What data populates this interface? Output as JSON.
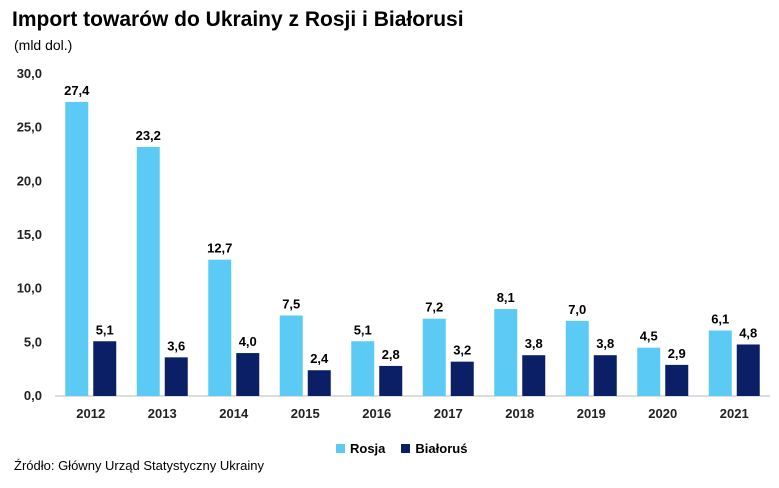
{
  "chart_data": {
    "type": "bar",
    "title": "Import towarów do Ukrainy z Rosji i Białorusi",
    "subtitle": "(mld dol.)",
    "categories": [
      "2012",
      "2013",
      "2014",
      "2015",
      "2016",
      "2017",
      "2018",
      "2019",
      "2020",
      "2021"
    ],
    "series": [
      {
        "name": "Rosja",
        "color": "#5bcbf5",
        "values": [
          27.4,
          23.2,
          12.7,
          7.5,
          5.1,
          7.2,
          8.1,
          7.0,
          4.5,
          6.1
        ],
        "labels": [
          "27,4",
          "23,2",
          "12,7",
          "7,5",
          "5,1",
          "7,2",
          "8,1",
          "7,0",
          "4,5",
          "6,1"
        ]
      },
      {
        "name": "Białoruś",
        "color": "#0b1f66",
        "values": [
          5.1,
          3.6,
          4.0,
          2.4,
          2.8,
          3.2,
          3.8,
          3.8,
          2.9,
          4.8
        ],
        "labels": [
          "5,1",
          "3,6",
          "4,0",
          "2,4",
          "2,8",
          "3,2",
          "3,8",
          "3,8",
          "2,9",
          "4,8"
        ]
      }
    ],
    "ylim": [
      0,
      30
    ],
    "yticks": [
      0,
      5,
      10,
      15,
      20,
      25,
      30
    ],
    "ytick_labels": [
      "0,0",
      "5,0",
      "10,0",
      "15,0",
      "20,0",
      "25,0",
      "30,0"
    ],
    "legend_position": "bottom-center"
  },
  "source": "Źródło: Główny Urząd Statystyczny Ukrainy"
}
